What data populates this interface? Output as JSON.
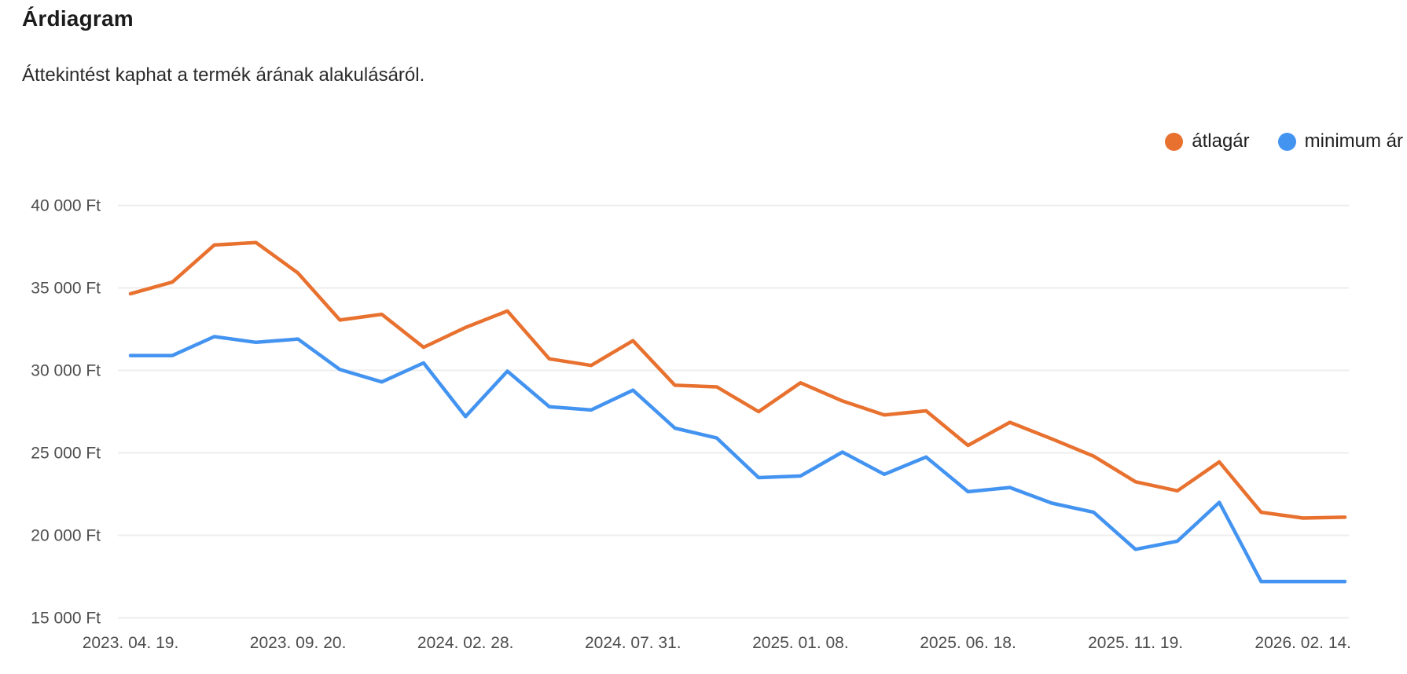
{
  "header": {
    "title": "Árdiagram",
    "subtitle": "Áttekintést kaphat a termék árának alakulásáról."
  },
  "legend": {
    "items": [
      {
        "label": "átlagár",
        "color": "#e8712f"
      },
      {
        "label": "minimum ár",
        "color": "#4393f1"
      }
    ]
  },
  "chart_data": {
    "type": "line",
    "title": "Árdiagram",
    "subtitle": "Áttekintést kaphat a termék árának alakulásáról.",
    "ylabel": "",
    "xlabel": "",
    "ylim": [
      15000,
      40000
    ],
    "grid": "horizontal",
    "legend_position": "top-right",
    "currency": "Ft",
    "y_ticks": [
      "40 000 Ft",
      "35 000 Ft",
      "30 000 Ft",
      "25 000 Ft",
      "20 000 Ft",
      "15 000 Ft"
    ],
    "y_tick_values": [
      40000,
      35000,
      30000,
      25000,
      20000,
      15000
    ],
    "x_labels": [
      "2023. 04. 19.",
      "2023. 09. 20.",
      "2024. 02. 28.",
      "2024. 07. 31.",
      "2025. 01. 08.",
      "2025. 06. 18.",
      "2025. 11. 19.",
      "2026. 02. 14."
    ],
    "x_label_indices": [
      0,
      4,
      8,
      12,
      16,
      20,
      24,
      28
    ],
    "series": [
      {
        "id": "atlagar",
        "name": "átlagár",
        "color": "#e8712f",
        "values": [
          34650,
          35350,
          37600,
          37750,
          35900,
          33050,
          33400,
          31400,
          32600,
          33600,
          30700,
          30300,
          31800,
          29100,
          29000,
          27500,
          29250,
          28150,
          27300,
          27550,
          25450,
          26850,
          25850,
          24800,
          23250,
          22700,
          24450,
          21400,
          21050,
          21100
        ]
      },
      {
        "id": "minimum-ar",
        "name": "minimum ár",
        "color": "#4393f1",
        "values": [
          30900,
          30900,
          32050,
          31700,
          31900,
          30050,
          29300,
          30450,
          27200,
          29950,
          27800,
          27600,
          28800,
          26500,
          25900,
          23500,
          23600,
          25050,
          23700,
          24750,
          22650,
          22900,
          21950,
          21400,
          19150,
          19650,
          22000,
          17200,
          17200,
          17200
        ]
      }
    ]
  }
}
